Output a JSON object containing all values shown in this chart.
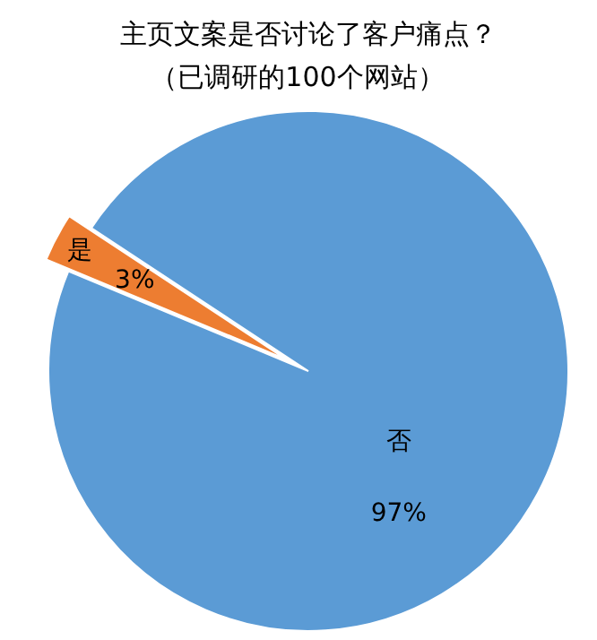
{
  "chart_data": {
    "type": "pie",
    "title": "主页文案是否讨论了客户痛点？",
    "subtitle": "（已调研的100个网站）",
    "categories": [
      "是",
      "否"
    ],
    "values": [
      3,
      97
    ],
    "colors": [
      "#ed7d31",
      "#5b9bd5"
    ],
    "value_labels": [
      "3%",
      "97%"
    ]
  }
}
